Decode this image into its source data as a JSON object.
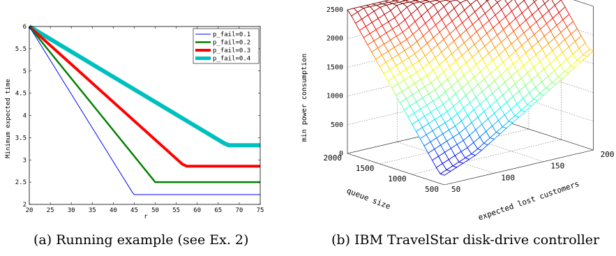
{
  "captions": {
    "a": "(a) Running example (see Ex. 2)",
    "b": "(b) IBM TravelStar disk-drive controller"
  },
  "chart_data": [
    {
      "type": "line",
      "xlabel": "r",
      "ylabel": "Minimum expected time",
      "xlim": [
        20,
        75
      ],
      "ylim": [
        2,
        6
      ],
      "xticks": [
        20,
        25,
        30,
        35,
        40,
        45,
        50,
        55,
        60,
        65,
        70,
        75
      ],
      "yticks": [
        2,
        2.5,
        3,
        3.5,
        4,
        4.5,
        5,
        5.5,
        6
      ],
      "legend": "top-right",
      "grid": false,
      "series": [
        {
          "name": "p_fail=0.1",
          "color": "#0000ff",
          "width": 1,
          "points": [
            [
              20,
              6
            ],
            [
              44.5,
              2.28
            ],
            [
              45,
              2.22
            ],
            [
              75,
              2.22
            ]
          ]
        },
        {
          "name": "p_fail=0.2",
          "color": "#008000",
          "width": 2.5,
          "points": [
            [
              20,
              6
            ],
            [
              50,
              2.5
            ],
            [
              75,
              2.5
            ]
          ]
        },
        {
          "name": "p_fail=0.3",
          "color": "#ff0000",
          "width": 4,
          "points": [
            [
              20,
              6
            ],
            [
              56.5,
              2.9
            ],
            [
              57.5,
              2.86
            ],
            [
              75,
              2.86
            ]
          ]
        },
        {
          "name": "p_fail=0.4",
          "color": "#00bfbf",
          "width": 6,
          "points": [
            [
              20,
              6
            ],
            [
              66.5,
              3.37
            ],
            [
              67.5,
              3.33
            ],
            [
              75,
              3.33
            ]
          ]
        }
      ]
    },
    {
      "type": "surface",
      "xlabel": "expected lost customers",
      "ylabel": "queue size",
      "zlabel": "min power consumption",
      "xticks": [
        50,
        100,
        150,
        200
      ],
      "yticks": [
        500,
        1000,
        1500,
        2000
      ],
      "zticks": [
        0,
        500,
        1000,
        1500,
        2000,
        2500
      ],
      "xlim": [
        50,
        200
      ],
      "ylim": [
        500,
        2000
      ],
      "zlim": [
        0,
        2500
      ],
      "grid": true,
      "colormap": "jet"
    }
  ]
}
